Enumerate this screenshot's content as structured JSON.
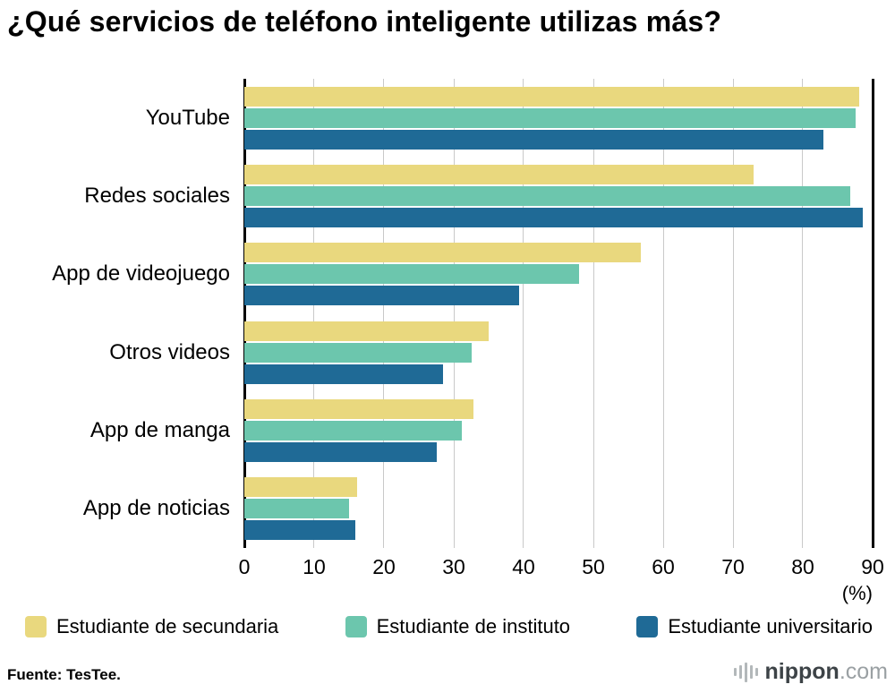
{
  "title": "¿Qué servicios de teléfono inteligente utilizas más?",
  "chart_data": {
    "type": "bar",
    "orientation": "horizontal",
    "title": "¿Qué servicios de teléfono inteligente utilizas más?",
    "categories": [
      "YouTube",
      "Redes sociales",
      "App de videojuego",
      "Otros videos",
      "App de manga",
      "App de noticias"
    ],
    "series": [
      {
        "name": "Estudiante de secundaria",
        "color": "#e9d87e",
        "values": [
          88.1,
          73.0,
          56.8,
          35.0,
          32.8,
          16.2
        ]
      },
      {
        "name": "Estudiante de instituto",
        "color": "#6cc6ad",
        "values": [
          87.5,
          86.8,
          47.9,
          32.5,
          31.1,
          15.0
        ]
      },
      {
        "name": "Estudiante universitario",
        "color": "#1f6a96",
        "values": [
          83.0,
          88.6,
          39.4,
          28.5,
          27.6,
          15.9
        ]
      }
    ],
    "xlim": [
      0,
      90
    ],
    "ticks": [
      0,
      10,
      20,
      30,
      40,
      50,
      60,
      70,
      80,
      90
    ],
    "unit_label": "(%)",
    "grid": true,
    "legend_position": "bottom"
  },
  "footer": {
    "source": "Fuente: TesTee.",
    "logo": {
      "name": "nippon",
      "tld": ".com"
    }
  }
}
